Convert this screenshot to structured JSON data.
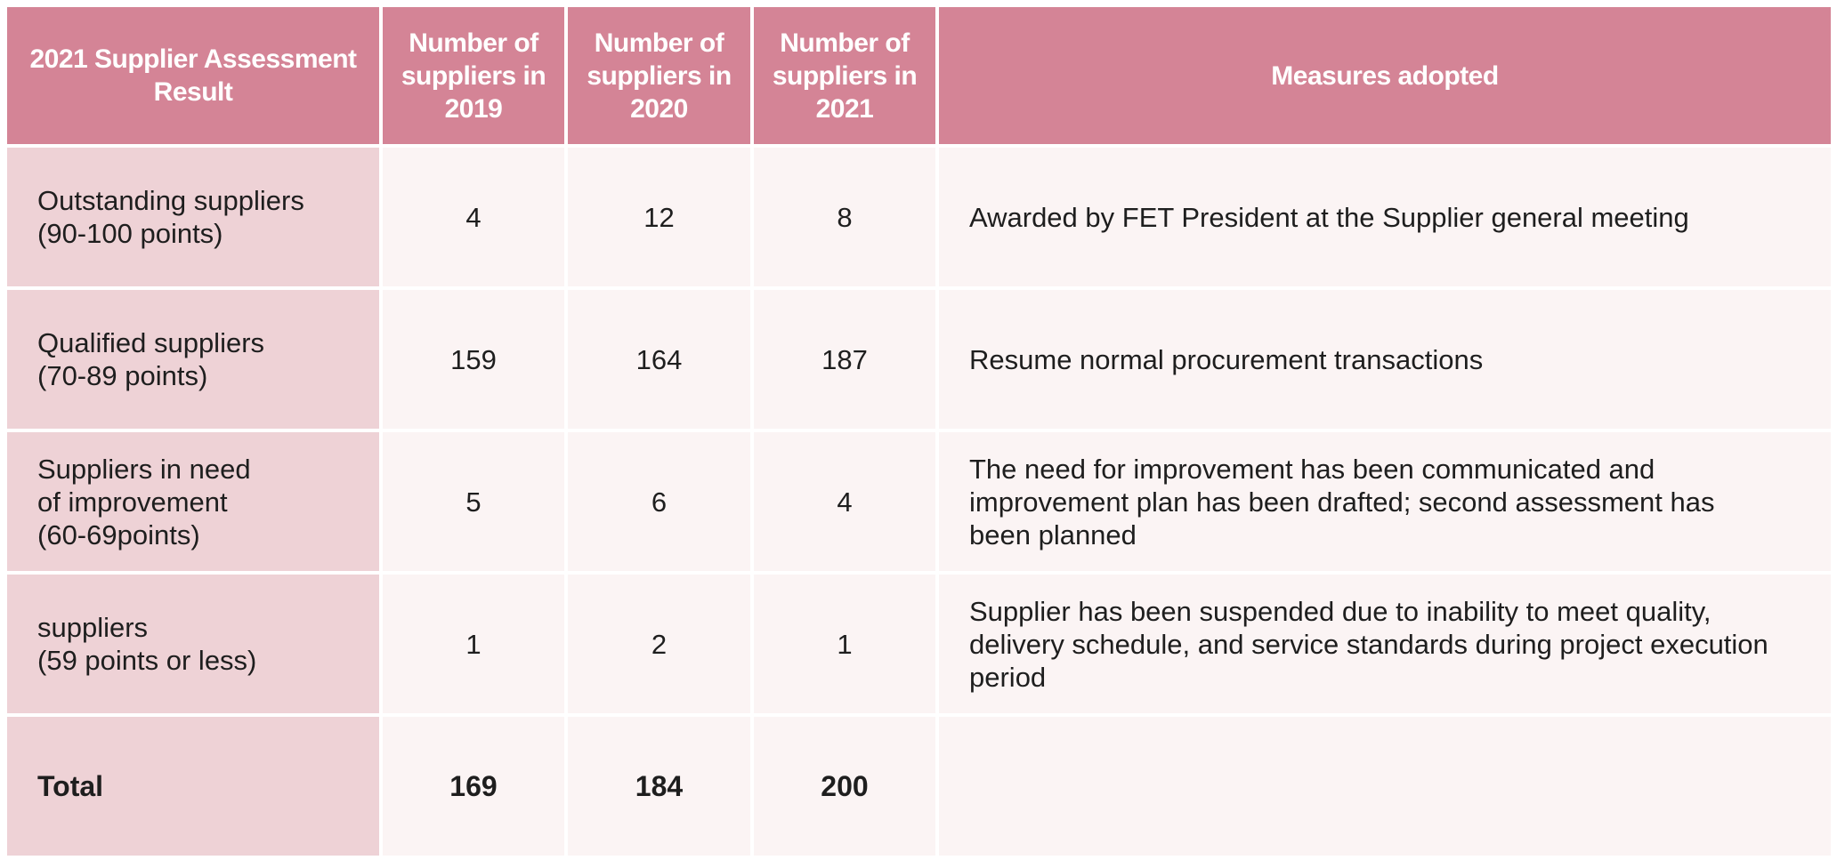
{
  "headers": [
    "2021 Supplier Assessment Result",
    "Number of suppliers in 2019",
    "Number of suppliers in 2020",
    "Number of suppliers in 2021",
    "Measures adopted"
  ],
  "rows": [
    {
      "label": [
        "Outstanding suppliers",
        "(90-100 points)"
      ],
      "y2019": "4",
      "y2020": "12",
      "y2021": "8",
      "measure": [
        "Awarded by FET President at the Supplier general meeting"
      ]
    },
    {
      "label": [
        "Qualified suppliers",
        "(70-89 points)"
      ],
      "y2019": "159",
      "y2020": "164",
      "y2021": "187",
      "measure": [
        "Resume normal procurement transactions"
      ]
    },
    {
      "label": [
        "Suppliers in need",
        "of improvement",
        "(60-69points)"
      ],
      "y2019": "5",
      "y2020": "6",
      "y2021": "4",
      "measure": [
        "The need for improvement has been communicated and",
        "improvement plan has been drafted; second assessment has",
        "been planned"
      ]
    },
    {
      "label": [
        "suppliers",
        "(59 points or less)"
      ],
      "y2019": "1",
      "y2020": "2",
      "y2021": "1",
      "measure": [
        "Supplier has been suspended due to inability to meet quality,",
        "delivery schedule, and service standards during project execution",
        "period"
      ]
    }
  ],
  "total": {
    "label": "Total",
    "y2019": "169",
    "y2020": "184",
    "y2021": "200",
    "measure": ""
  },
  "colors": {
    "header": "#d48496",
    "label_cell": "#eed2d6",
    "body_cell": "#fbf4f4",
    "text": "#1e1e1e"
  }
}
